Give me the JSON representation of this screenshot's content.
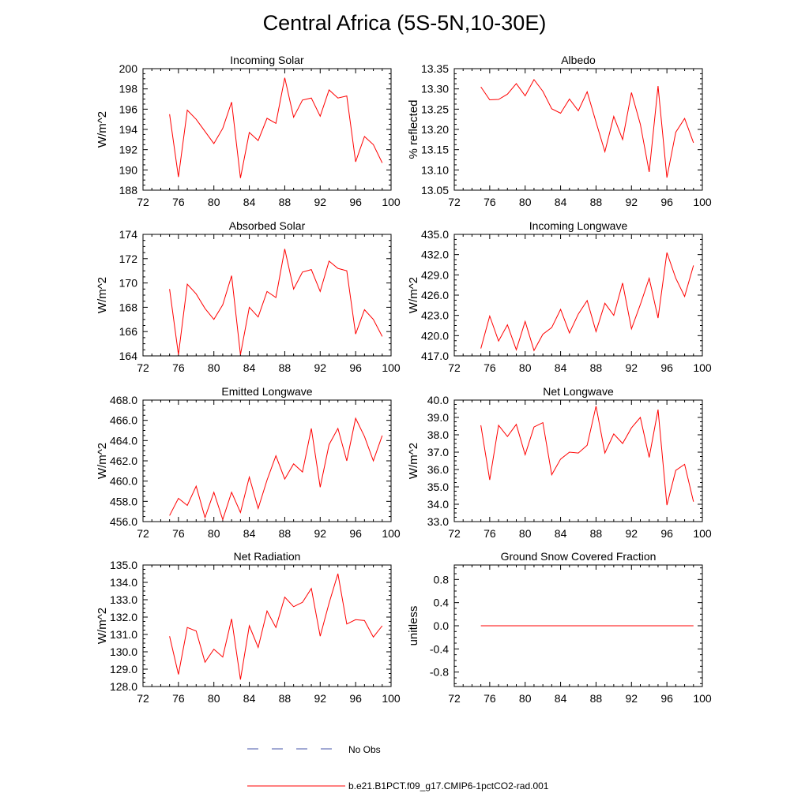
{
  "title": "Central Africa (5S-5N,10-30E)",
  "colors": {
    "model_line": "#ff0000",
    "obs_line": "#4455aa",
    "axis": "#000000"
  },
  "legend": {
    "obs_label": "No Obs",
    "model_label": "b.e21.B1PCT.f09_g17.CMIP6-1pctCO2-rad.001"
  },
  "chart_data": [
    {
      "type": "line",
      "title": "Incoming Solar",
      "ylabel": "W/m^2",
      "xlim": [
        72,
        100
      ],
      "ylim": [
        188,
        200
      ],
      "xticks": [
        72,
        76,
        80,
        84,
        88,
        92,
        96,
        100
      ],
      "yticks": [
        188,
        190,
        192,
        194,
        196,
        198,
        200
      ],
      "ytick_labels": [
        "188",
        "190",
        "192",
        "194",
        "196",
        "198",
        "200"
      ],
      "x": [
        75,
        76,
        77,
        78,
        79,
        80,
        81,
        82,
        83,
        84,
        85,
        86,
        87,
        88,
        89,
        90,
        91,
        92,
        93,
        94,
        95,
        96,
        97,
        98,
        99
      ],
      "series": [
        {
          "values": [
            195.5,
            189.3,
            195.9,
            195.0,
            193.8,
            192.6,
            194.1,
            196.7,
            189.2,
            193.7,
            192.9,
            195.1,
            194.6,
            199.1,
            195.2,
            196.9,
            197.1,
            195.3,
            197.9,
            197.1,
            197.3,
            190.8,
            193.3,
            192.5,
            190.7
          ]
        }
      ]
    },
    {
      "type": "line",
      "title": "Albedo",
      "ylabel": "% reflected",
      "xlim": [
        72,
        100
      ],
      "ylim": [
        13.05,
        13.35
      ],
      "xticks": [
        72,
        76,
        80,
        84,
        88,
        92,
        96,
        100
      ],
      "yticks": [
        13.05,
        13.1,
        13.15,
        13.2,
        13.25,
        13.3,
        13.35
      ],
      "ytick_labels": [
        "13.05",
        "13.10",
        "13.15",
        "13.20",
        "13.25",
        "13.30",
        "13.35"
      ],
      "x": [
        75,
        76,
        77,
        78,
        79,
        80,
        81,
        82,
        83,
        84,
        85,
        86,
        87,
        88,
        89,
        90,
        91,
        92,
        93,
        94,
        95,
        96,
        97,
        98,
        99
      ],
      "series": [
        {
          "values": [
            13.305,
            13.273,
            13.274,
            13.287,
            13.313,
            13.283,
            13.323,
            13.294,
            13.251,
            13.24,
            13.275,
            13.246,
            13.293,
            13.218,
            13.145,
            13.232,
            13.175,
            13.291,
            13.213,
            13.095,
            13.307,
            13.081,
            13.193,
            13.227,
            13.167
          ]
        }
      ]
    },
    {
      "type": "line",
      "title": "Absorbed Solar",
      "ylabel": "W/m^2",
      "xlim": [
        72,
        100
      ],
      "ylim": [
        164,
        174
      ],
      "xticks": [
        72,
        76,
        80,
        84,
        88,
        92,
        96,
        100
      ],
      "yticks": [
        164,
        166,
        168,
        170,
        172,
        174
      ],
      "ytick_labels": [
        "164",
        "166",
        "168",
        "170",
        "172",
        "174"
      ],
      "x": [
        75,
        76,
        77,
        78,
        79,
        80,
        81,
        82,
        83,
        84,
        85,
        86,
        87,
        88,
        89,
        90,
        91,
        92,
        93,
        94,
        95,
        96,
        97,
        98,
        99
      ],
      "series": [
        {
          "values": [
            169.5,
            164.1,
            169.9,
            169.1,
            167.9,
            167.0,
            168.2,
            170.6,
            164.1,
            168.0,
            167.2,
            169.3,
            168.8,
            172.8,
            169.5,
            170.9,
            171.1,
            169.3,
            171.8,
            171.2,
            171.0,
            165.8,
            167.8,
            167.0,
            165.6
          ]
        }
      ]
    },
    {
      "type": "line",
      "title": "Incoming Longwave",
      "ylabel": "W/m^2",
      "xlim": [
        72,
        100
      ],
      "ylim": [
        417.0,
        435.0
      ],
      "xticks": [
        72,
        76,
        80,
        84,
        88,
        92,
        96,
        100
      ],
      "yticks": [
        417,
        420,
        423,
        426,
        429,
        432,
        435
      ],
      "ytick_labels": [
        "417.0",
        "420.0",
        "423.0",
        "426.0",
        "429.0",
        "432.0",
        "435.0"
      ],
      "x": [
        75,
        76,
        77,
        78,
        79,
        80,
        81,
        82,
        83,
        84,
        85,
        86,
        87,
        88,
        89,
        90,
        91,
        92,
        93,
        94,
        95,
        96,
        97,
        98,
        99
      ],
      "series": [
        {
          "values": [
            418.1,
            422.9,
            419.2,
            421.6,
            417.9,
            422.1,
            417.8,
            420.2,
            421.2,
            423.9,
            420.4,
            423.2,
            425.2,
            420.6,
            424.8,
            423.0,
            427.8,
            421.0,
            424.6,
            428.5,
            422.6,
            432.3,
            428.5,
            425.8,
            430.4
          ]
        }
      ]
    },
    {
      "type": "line",
      "title": "Emitted Longwave",
      "ylabel": "W/m^2",
      "xlim": [
        72,
        100
      ],
      "ylim": [
        456.0,
        468.0
      ],
      "xticks": [
        72,
        76,
        80,
        84,
        88,
        92,
        96,
        100
      ],
      "yticks": [
        456,
        458,
        460,
        462,
        464,
        466,
        468
      ],
      "ytick_labels": [
        "456.0",
        "458.0",
        "460.0",
        "462.0",
        "464.0",
        "466.0",
        "468.0"
      ],
      "x": [
        75,
        76,
        77,
        78,
        79,
        80,
        81,
        82,
        83,
        84,
        85,
        86,
        87,
        88,
        89,
        90,
        91,
        92,
        93,
        94,
        95,
        96,
        97,
        98,
        99
      ],
      "series": [
        {
          "values": [
            456.6,
            458.3,
            457.6,
            459.5,
            456.4,
            458.9,
            456.2,
            458.9,
            456.9,
            460.4,
            457.3,
            460.1,
            462.5,
            460.2,
            461.7,
            460.9,
            465.2,
            459.4,
            463.6,
            465.2,
            462.0,
            466.2,
            464.4,
            462.0,
            464.5
          ]
        }
      ]
    },
    {
      "type": "line",
      "title": "Net Longwave",
      "ylabel": "W/m^2",
      "xlim": [
        72,
        100
      ],
      "ylim": [
        33.0,
        40.0
      ],
      "xticks": [
        72,
        76,
        80,
        84,
        88,
        92,
        96,
        100
      ],
      "yticks": [
        33,
        34,
        35,
        36,
        37,
        38,
        39,
        40
      ],
      "ytick_labels": [
        "33.0",
        "34.0",
        "35.0",
        "36.0",
        "37.0",
        "38.0",
        "39.0",
        "40.0"
      ],
      "x": [
        75,
        76,
        77,
        78,
        79,
        80,
        81,
        82,
        83,
        84,
        85,
        86,
        87,
        88,
        89,
        90,
        91,
        92,
        93,
        94,
        95,
        96,
        97,
        98,
        99
      ],
      "series": [
        {
          "values": [
            38.55,
            35.4,
            38.55,
            37.9,
            38.6,
            36.85,
            38.45,
            38.7,
            35.7,
            36.6,
            37.0,
            36.95,
            37.4,
            39.65,
            36.95,
            38.05,
            37.5,
            38.4,
            39.0,
            36.7,
            39.45,
            33.95,
            35.95,
            36.3,
            34.15
          ]
        }
      ]
    },
    {
      "type": "line",
      "title": "Net Radiation",
      "ylabel": "W/m^2",
      "xlim": [
        72,
        100
      ],
      "ylim": [
        128.0,
        135.0
      ],
      "xticks": [
        72,
        76,
        80,
        84,
        88,
        92,
        96,
        100
      ],
      "yticks": [
        128,
        129,
        130,
        131,
        132,
        133,
        134,
        135
      ],
      "ytick_labels": [
        "128.0",
        "129.0",
        "130.0",
        "131.0",
        "132.0",
        "133.0",
        "134.0",
        "135.0"
      ],
      "x": [
        75,
        76,
        77,
        78,
        79,
        80,
        81,
        82,
        83,
        84,
        85,
        86,
        87,
        88,
        89,
        90,
        91,
        92,
        93,
        94,
        95,
        96,
        97,
        98,
        99
      ],
      "series": [
        {
          "values": [
            130.9,
            128.7,
            131.4,
            131.2,
            129.4,
            130.15,
            129.7,
            131.9,
            128.4,
            131.5,
            130.25,
            132.35,
            131.4,
            133.15,
            132.6,
            132.85,
            133.65,
            130.9,
            132.8,
            134.5,
            131.6,
            131.85,
            131.8,
            130.85,
            131.5
          ]
        }
      ]
    },
    {
      "type": "line",
      "title": "Ground Snow Covered Fraction",
      "ylabel": "unitless",
      "xlim": [
        72,
        100
      ],
      "ylim": [
        -1.05,
        1.05
      ],
      "xticks": [
        72,
        76,
        80,
        84,
        88,
        92,
        96,
        100
      ],
      "yticks": [
        -0.8,
        -0.4,
        0.0,
        0.4,
        0.8
      ],
      "ytick_labels": [
        "-0.8",
        "-0.4",
        "0.0",
        "0.4",
        "0.8"
      ],
      "x": [
        75,
        76,
        77,
        78,
        79,
        80,
        81,
        82,
        83,
        84,
        85,
        86,
        87,
        88,
        89,
        90,
        91,
        92,
        93,
        94,
        95,
        96,
        97,
        98,
        99
      ],
      "series": [
        {
          "values": [
            0,
            0,
            0,
            0,
            0,
            0,
            0,
            0,
            0,
            0,
            0,
            0,
            0,
            0,
            0,
            0,
            0,
            0,
            0,
            0,
            0,
            0,
            0,
            0,
            0
          ]
        }
      ]
    }
  ]
}
